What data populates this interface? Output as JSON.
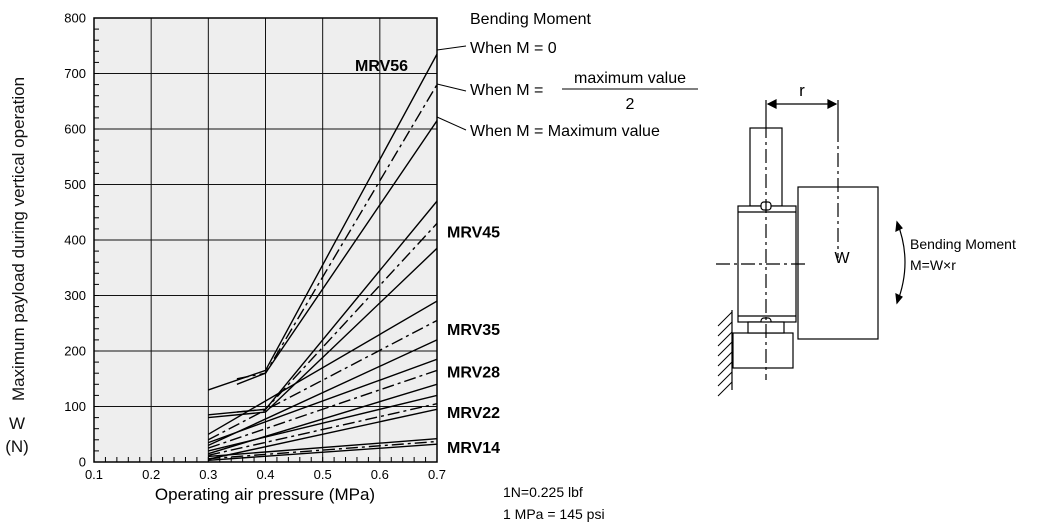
{
  "chart_data": {
    "type": "line",
    "xlabel": "Operating air pressure (MPa)",
    "ylabel": "Maximum payload during vertical operation",
    "ylabel_symbol": "W",
    "ylabel_unit": "(N)",
    "xlim": [
      0.1,
      0.7
    ],
    "ylim": [
      0,
      800
    ],
    "x_ticks": [
      0.1,
      0.2,
      0.3,
      0.4,
      0.5,
      0.6,
      0.7
    ],
    "y_ticks": [
      0,
      100,
      200,
      300,
      400,
      500,
      600,
      700,
      800
    ],
    "grid": true,
    "series": [
      {
        "name": "MRV56",
        "curve": "When M = 0",
        "dash": "solid",
        "points": [
          [
            0.3,
            130
          ],
          [
            0.4,
            165
          ],
          [
            0.7,
            735
          ]
        ]
      },
      {
        "name": "MRV56",
        "curve": "When M = maximum value/2",
        "dash": "dashdot",
        "points": [
          [
            0.35,
            150
          ],
          [
            0.4,
            160
          ],
          [
            0.7,
            680
          ]
        ]
      },
      {
        "name": "MRV56",
        "curve": "When M = Maximum value",
        "dash": "solid",
        "points": [
          [
            0.35,
            140
          ],
          [
            0.4,
            160
          ],
          [
            0.7,
            615
          ]
        ]
      },
      {
        "name": "MRV45",
        "curve": "When M = 0",
        "dash": "solid",
        "points": [
          [
            0.3,
            85
          ],
          [
            0.4,
            95
          ],
          [
            0.7,
            470
          ]
        ]
      },
      {
        "name": "MRV45",
        "curve": "When M = maximum value/2",
        "dash": "dashdot",
        "points": [
          [
            0.35,
            90
          ],
          [
            0.4,
            95
          ],
          [
            0.7,
            430
          ]
        ]
      },
      {
        "name": "MRV45",
        "curve": "When M = Maximum value",
        "dash": "solid",
        "points": [
          [
            0.3,
            80
          ],
          [
            0.4,
            90
          ],
          [
            0.7,
            385
          ]
        ]
      },
      {
        "name": "MRV35",
        "curve": "When M = 0",
        "dash": "solid",
        "points": [
          [
            0.3,
            50
          ],
          [
            0.7,
            290
          ]
        ]
      },
      {
        "name": "MRV35",
        "curve": "When M = maximum value/2",
        "dash": "dashdot",
        "points": [
          [
            0.3,
            40
          ],
          [
            0.7,
            255
          ]
        ]
      },
      {
        "name": "MRV35",
        "curve": "When M = Maximum value",
        "dash": "solid",
        "points": [
          [
            0.3,
            30
          ],
          [
            0.7,
            220
          ]
        ]
      },
      {
        "name": "MRV28",
        "curve": "When M = 0",
        "dash": "solid",
        "points": [
          [
            0.3,
            35
          ],
          [
            0.7,
            185
          ]
        ]
      },
      {
        "name": "MRV28",
        "curve": "When M = maximum value/2",
        "dash": "dashdot",
        "points": [
          [
            0.3,
            25
          ],
          [
            0.7,
            165
          ]
        ]
      },
      {
        "name": "MRV28",
        "curve": "When M = Maximum value",
        "dash": "solid",
        "points": [
          [
            0.3,
            15
          ],
          [
            0.7,
            140
          ]
        ]
      },
      {
        "name": "MRV22",
        "curve": "When M = 0",
        "dash": "solid",
        "points": [
          [
            0.3,
            20
          ],
          [
            0.7,
            120
          ]
        ]
      },
      {
        "name": "MRV22",
        "curve": "When M = maximum value/2",
        "dash": "dashdot",
        "points": [
          [
            0.3,
            12
          ],
          [
            0.7,
            105
          ]
        ]
      },
      {
        "name": "MRV22",
        "curve": "When M = Maximum value",
        "dash": "solid",
        "points": [
          [
            0.3,
            5
          ],
          [
            0.7,
            95
          ]
        ]
      },
      {
        "name": "MRV14",
        "curve": "When M = 0",
        "dash": "solid",
        "points": [
          [
            0.3,
            10
          ],
          [
            0.7,
            42
          ]
        ]
      },
      {
        "name": "MRV14",
        "curve": "When M = maximum value/2",
        "dash": "dashdot",
        "points": [
          [
            0.3,
            6
          ],
          [
            0.7,
            37
          ]
        ]
      },
      {
        "name": "MRV14",
        "curve": "When M = Maximum value",
        "dash": "solid",
        "points": [
          [
            0.3,
            3
          ],
          [
            0.7,
            32
          ]
        ]
      }
    ],
    "model_labels": [
      {
        "text": "MRV56",
        "y": 715
      },
      {
        "text": "MRV45",
        "y": 415
      },
      {
        "text": "MRV35",
        "y": 240
      },
      {
        "text": "MRV28",
        "y": 163
      },
      {
        "text": "MRV22",
        "y": 90
      },
      {
        "text": "MRV14",
        "y": 27
      }
    ],
    "legend_title": "Bending Moment",
    "legend": {
      "m0": "When M = 0",
      "mhalf_prefix": "When M =",
      "mhalf_numerator": "maximum value",
      "mhalf_denominator": "2",
      "mmax": "When M = Maximum value"
    },
    "notes": [
      "1N=0.225 lbf",
      "1 MPa = 145 psi"
    ],
    "diagram": {
      "r_label": "r",
      "w_label": "W",
      "moment_label": "Bending Moment",
      "moment_formula": "M=W×r"
    },
    "colors": {
      "plot_bg": "#eeeeee",
      "grid": "#111111",
      "line": "#000000"
    }
  }
}
